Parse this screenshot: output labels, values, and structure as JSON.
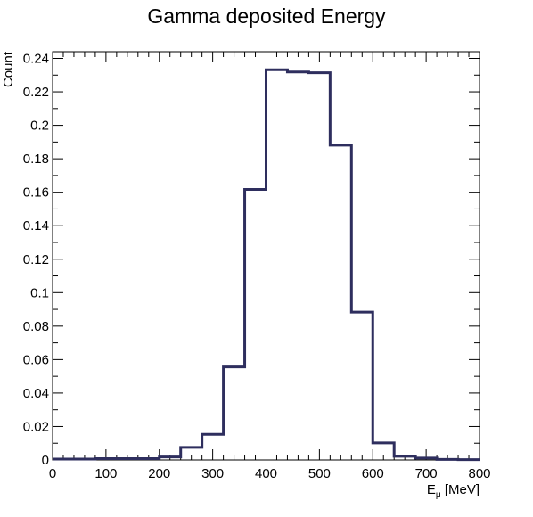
{
  "chart_data": {
    "type": "histogram",
    "title": "Gamma deposited Energy",
    "xlabel": {
      "main": "E",
      "subscript": "μ",
      "unit": "[MeV]"
    },
    "ylabel": "Count",
    "xlim": [
      0,
      800
    ],
    "ylim": [
      0,
      0.244
    ],
    "x_ticks": [
      0,
      100,
      200,
      300,
      400,
      500,
      600,
      700,
      800
    ],
    "x_tick_labels": [
      "0",
      "100",
      "200",
      "300",
      "400",
      "500",
      "600",
      "700",
      "800"
    ],
    "y_ticks": [
      0,
      0.02,
      0.04,
      0.06,
      0.08,
      0.1,
      0.12,
      0.14,
      0.16,
      0.18,
      0.2,
      0.22,
      0.24
    ],
    "y_tick_labels": [
      "0",
      "0.02",
      "0.04",
      "0.06",
      "0.08",
      "0.1",
      "0.12",
      "0.14",
      "0.16",
      "0.18",
      "0.2",
      "0.22",
      "0.24"
    ],
    "bins": {
      "edges": [
        0,
        40,
        80,
        120,
        160,
        200,
        240,
        280,
        320,
        360,
        400,
        440,
        480,
        520,
        560,
        600,
        640,
        680,
        720,
        760,
        800
      ],
      "values": [
        0.0005,
        0.0005,
        0.0008,
        0.0008,
        0.0008,
        0.0018,
        0.0075,
        0.0153,
        0.0556,
        0.1617,
        0.2332,
        0.2319,
        0.2314,
        0.1881,
        0.0884,
        0.0102,
        0.0022,
        0.0011,
        0.0003,
        0.0002
      ]
    },
    "grid": false,
    "legend": "none",
    "colors": {
      "line": "#2e2e5e",
      "axis": "#000000",
      "background": "#ffffff"
    }
  }
}
